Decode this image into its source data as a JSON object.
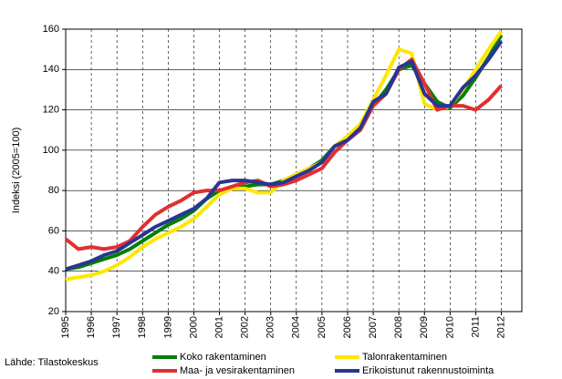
{
  "chart_data": {
    "type": "line",
    "y_label": "Indeksi (2005=100)",
    "source": "Lähde: Tilastokeskus",
    "x": [
      1995,
      1995.5,
      1996,
      1996.5,
      1997,
      1997.5,
      1998,
      1998.5,
      1999,
      1999.5,
      2000,
      2000.5,
      2001,
      2001.5,
      2002,
      2002.5,
      2003,
      2003.5,
      2004,
      2004.5,
      2005,
      2005.5,
      2006,
      2006.5,
      2007,
      2007.5,
      2008,
      2008.5,
      2009,
      2009.5,
      2010,
      2010.5,
      2011,
      2011.5,
      2012
    ],
    "series": [
      {
        "name": "Koko rakentaminen",
        "color": "#008000",
        "values": [
          41,
          42,
          44,
          46,
          48,
          51,
          55,
          59,
          63,
          66,
          70,
          76,
          80,
          81,
          82,
          83,
          83,
          85,
          88,
          91,
          95,
          102,
          106,
          112,
          122,
          130,
          140,
          142,
          133,
          124,
          121,
          127,
          136,
          146,
          157
        ]
      },
      {
        "name": "Talonrakentaminen",
        "color": "#ffe600",
        "values": [
          36,
          37,
          38,
          40,
          43,
          47,
          52,
          56,
          59,
          62,
          66,
          72,
          78,
          81,
          81,
          79,
          79,
          85,
          88,
          91,
          94,
          102,
          107,
          113,
          125,
          137,
          150,
          148,
          123,
          120,
          122,
          130,
          140,
          150,
          159
        ]
      },
      {
        "name": "Maa- ja vesirakentaminen",
        "color": "#e03030",
        "values": [
          56,
          51,
          52,
          51,
          52,
          55,
          62,
          68,
          72,
          75,
          79,
          80,
          80,
          82,
          84,
          85,
          82,
          83,
          85,
          88,
          91,
          99,
          105,
          110,
          122,
          128,
          140,
          145,
          133,
          120,
          122,
          122,
          120,
          125,
          132
        ]
      },
      {
        "name": "Erikoistunut rakennustoiminta",
        "color": "#283593",
        "values": [
          41,
          43,
          45,
          48,
          50,
          54,
          58,
          62,
          65,
          68,
          71,
          76,
          84,
          85,
          85,
          84,
          83,
          84,
          87,
          90,
          94,
          102,
          105,
          111,
          124,
          128,
          141,
          144,
          128,
          122,
          122,
          131,
          137,
          145,
          154
        ]
      }
    ],
    "xlim": [
      1995,
      2012.8
    ],
    "xticks": [
      1995,
      1996,
      1997,
      1998,
      1999,
      2000,
      2001,
      2002,
      2003,
      2004,
      2005,
      2006,
      2007,
      2008,
      2009,
      2010,
      2011,
      2012
    ],
    "ylim": [
      20,
      160
    ],
    "yticks": [
      20,
      40,
      60,
      80,
      100,
      120,
      140,
      160
    ],
    "grid": true,
    "legend": "bottom"
  }
}
